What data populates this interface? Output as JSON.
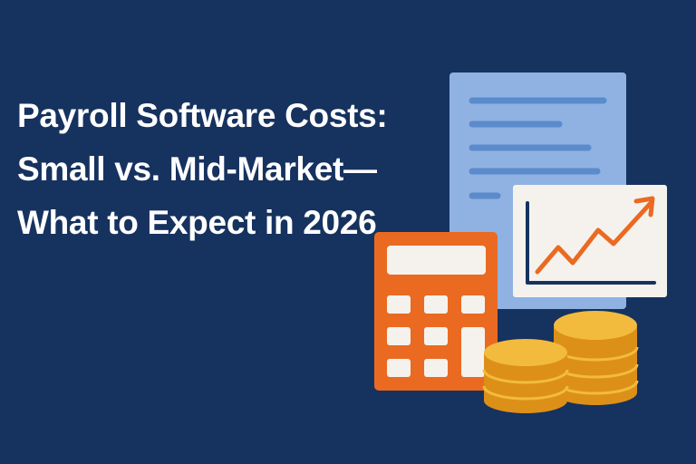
{
  "title": {
    "lines": [
      "Payroll Software Costs:",
      "Small vs. Mid-Market—",
      "What to Expect in 2026"
    ]
  },
  "illustration": {
    "icons": [
      "document-icon",
      "line-chart-icon",
      "calculator-icon",
      "coin-stack-icon"
    ]
  },
  "colors": {
    "background": "#16325f",
    "text": "#ffffff",
    "document": "#8fb2e3",
    "document_lines": "#5b8bcb",
    "chart_card": "#f5f2ee",
    "chart_axis": "#16325f",
    "accent_orange": "#ea6a22",
    "coin_top": "#f2bb3e",
    "coin_side": "#dd9018"
  }
}
